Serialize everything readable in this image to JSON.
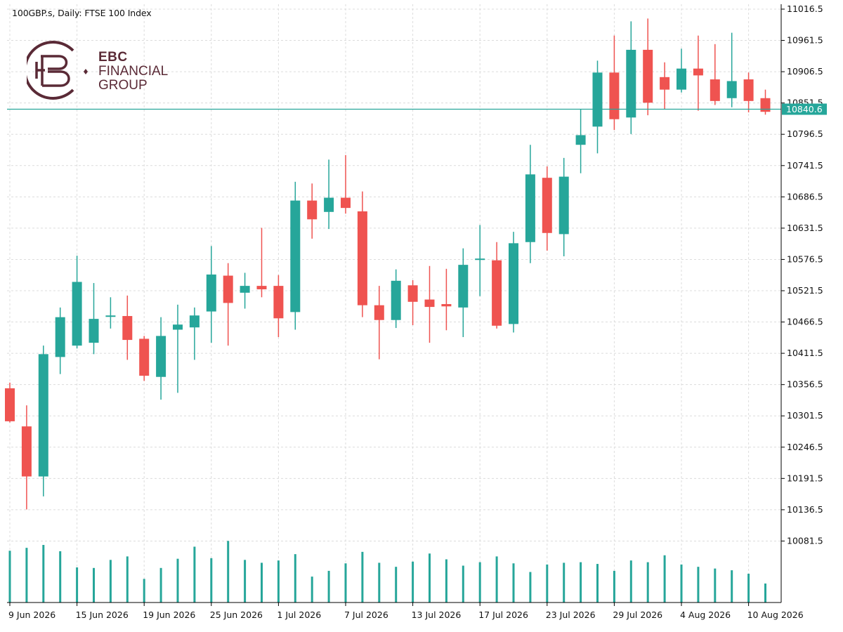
{
  "header": {
    "title": "100GBP.s, Daily:  FTSE 100 Index"
  },
  "logo": {
    "line1": "EBC",
    "line2": "FINANCIAL",
    "line3": "GROUP",
    "color": "#5a2a36"
  },
  "colors": {
    "bull": "#26a69a",
    "bear": "#ef5350",
    "grid": "#dcdcdc",
    "current_line": "#26a69a"
  },
  "current_price_label": "10840.6",
  "chart_data": {
    "type": "candlestick",
    "title": "100GBP.s, Daily:  FTSE 100 Index",
    "timeframe": "Daily",
    "ylim": [
      10026.5,
      11016.5
    ],
    "y_ticks": [
      "11016.5",
      "10961.5",
      "10906.5",
      "10851.5",
      "10796.5",
      "10741.5",
      "10686.5",
      "10631.5",
      "10576.5",
      "10521.5",
      "10466.5",
      "10411.5",
      "10356.5",
      "10301.5",
      "10246.5",
      "10191.5",
      "10136.5",
      "10081.5"
    ],
    "x_ticks": [
      {
        "label": "9 Jun 2026",
        "bar": 0
      },
      {
        "label": "15 Jun 2026",
        "bar": 4
      },
      {
        "label": "19 Jun 2026",
        "bar": 8
      },
      {
        "label": "25 Jun 2026",
        "bar": 12
      },
      {
        "label": "1 Jul 2026",
        "bar": 16
      },
      {
        "label": "7 Jul 2026",
        "bar": 20
      },
      {
        "label": "13 Jul 2026",
        "bar": 24
      },
      {
        "label": "17 Jul 2026",
        "bar": 28
      },
      {
        "label": "23 Jul 2026",
        "bar": 32
      },
      {
        "label": "29 Jul 2026",
        "bar": 36
      },
      {
        "label": "4 Aug 2026",
        "bar": 40
      },
      {
        "label": "10 Aug 2026",
        "bar": 44
      }
    ],
    "current_price": 10840.6,
    "volume_scale_max": 100,
    "candles": [
      {
        "o": 10350,
        "h": 10360,
        "l": 10290,
        "c": 10292,
        "v": 90
      },
      {
        "o": 10283,
        "h": 10320,
        "l": 10137,
        "c": 10195,
        "v": 95
      },
      {
        "o": 10195,
        "h": 10425,
        "l": 10160,
        "c": 10410,
        "v": 100
      },
      {
        "o": 10405,
        "h": 10492,
        "l": 10375,
        "c": 10475,
        "v": 89
      },
      {
        "o": 10425,
        "h": 10583,
        "l": 10420,
        "c": 10537,
        "v": 61
      },
      {
        "o": 10430,
        "h": 10535,
        "l": 10410,
        "c": 10472,
        "v": 60
      },
      {
        "o": 10478,
        "h": 10510,
        "l": 10455,
        "c": 10478,
        "v": 74
      },
      {
        "o": 10477,
        "h": 10513,
        "l": 10400,
        "c": 10435,
        "v": 80
      },
      {
        "o": 10437,
        "h": 10442,
        "l": 10363,
        "c": 10372,
        "v": 41
      },
      {
        "o": 10370,
        "h": 10475,
        "l": 10330,
        "c": 10442,
        "v": 60
      },
      {
        "o": 10453,
        "h": 10497,
        "l": 10342,
        "c": 10462,
        "v": 76
      },
      {
        "o": 10457,
        "h": 10492,
        "l": 10400,
        "c": 10478,
        "v": 97
      },
      {
        "o": 10485,
        "h": 10600,
        "l": 10430,
        "c": 10550,
        "v": 77
      },
      {
        "o": 10548,
        "h": 10570,
        "l": 10425,
        "c": 10500,
        "v": 107
      },
      {
        "o": 10518,
        "h": 10553,
        "l": 10490,
        "c": 10530,
        "v": 74
      },
      {
        "o": 10530,
        "h": 10632,
        "l": 10510,
        "c": 10524,
        "v": 69
      },
      {
        "o": 10530,
        "h": 10549,
        "l": 10440,
        "c": 10473,
        "v": 73
      },
      {
        "o": 10484,
        "h": 10713,
        "l": 10453,
        "c": 10680,
        "v": 84
      },
      {
        "o": 10680,
        "h": 10710,
        "l": 10613,
        "c": 10647,
        "v": 45
      },
      {
        "o": 10660,
        "h": 10752,
        "l": 10630,
        "c": 10685,
        "v": 55
      },
      {
        "o": 10685,
        "h": 10760,
        "l": 10657,
        "c": 10667,
        "v": 68
      },
      {
        "o": 10661,
        "h": 10696,
        "l": 10475,
        "c": 10496,
        "v": 88
      },
      {
        "o": 10496,
        "h": 10530,
        "l": 10401,
        "c": 10470,
        "v": 69
      },
      {
        "o": 10470,
        "h": 10559,
        "l": 10456,
        "c": 10539,
        "v": 62
      },
      {
        "o": 10531,
        "h": 10540,
        "l": 10461,
        "c": 10502,
        "v": 71
      },
      {
        "o": 10506,
        "h": 10565,
        "l": 10430,
        "c": 10493,
        "v": 85
      },
      {
        "o": 10498,
        "h": 10560,
        "l": 10452,
        "c": 10494,
        "v": 75
      },
      {
        "o": 10492,
        "h": 10596,
        "l": 10440,
        "c": 10567,
        "v": 64
      },
      {
        "o": 10577,
        "h": 10637,
        "l": 10512,
        "c": 10578,
        "v": 70
      },
      {
        "o": 10575,
        "h": 10607,
        "l": 10455,
        "c": 10460,
        "v": 80
      },
      {
        "o": 10463,
        "h": 10625,
        "l": 10448,
        "c": 10605,
        "v": 68
      },
      {
        "o": 10607,
        "h": 10778,
        "l": 10570,
        "c": 10726,
        "v": 53
      },
      {
        "o": 10720,
        "h": 10740,
        "l": 10592,
        "c": 10623,
        "v": 66
      },
      {
        "o": 10621,
        "h": 10755,
        "l": 10582,
        "c": 10722,
        "v": 69
      },
      {
        "o": 10778,
        "h": 10840,
        "l": 10728,
        "c": 10795,
        "v": 70
      },
      {
        "o": 10810,
        "h": 10926,
        "l": 10763,
        "c": 10905,
        "v": 67
      },
      {
        "o": 10905,
        "h": 10970,
        "l": 10804,
        "c": 10823,
        "v": 55
      },
      {
        "o": 10826,
        "h": 10995,
        "l": 10797,
        "c": 10945,
        "v": 73
      },
      {
        "o": 10945,
        "h": 11000,
        "l": 10830,
        "c": 10852,
        "v": 70
      },
      {
        "o": 10897,
        "h": 10923,
        "l": 10840,
        "c": 10875,
        "v": 82
      },
      {
        "o": 10875,
        "h": 10947,
        "l": 10870,
        "c": 10912,
        "v": 66
      },
      {
        "o": 10912,
        "h": 10970,
        "l": 10838,
        "c": 10900,
        "v": 62
      },
      {
        "o": 10893,
        "h": 10955,
        "l": 10848,
        "c": 10855,
        "v": 59
      },
      {
        "o": 10860,
        "h": 10975,
        "l": 10844,
        "c": 10890,
        "v": 56
      },
      {
        "o": 10893,
        "h": 10905,
        "l": 10835,
        "c": 10855,
        "v": 50
      },
      {
        "o": 10860,
        "h": 10875,
        "l": 10831,
        "c": 10836,
        "v": 33
      }
    ]
  }
}
